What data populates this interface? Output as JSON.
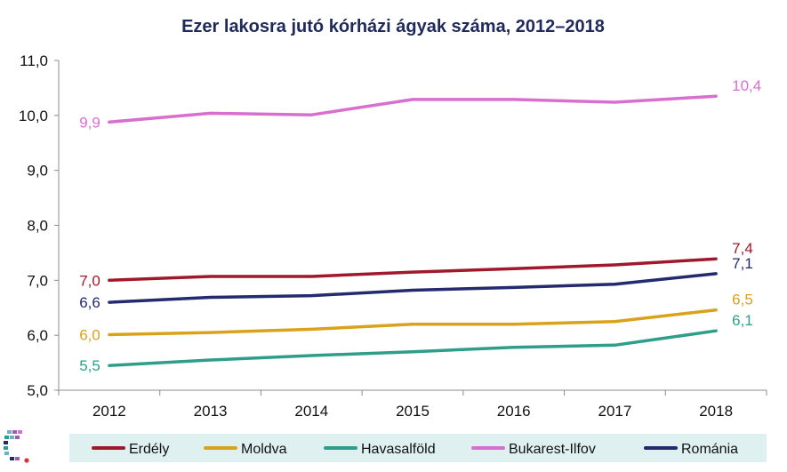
{
  "chart_data": {
    "type": "line",
    "title": "Ezer lakosra jutó kórházi ágyak száma, 2012–2018",
    "xlabel": "",
    "ylabel": "",
    "categories": [
      "2012",
      "2013",
      "2014",
      "2015",
      "2016",
      "2017",
      "2018"
    ],
    "ylim": [
      5.0,
      11.0
    ],
    "yticks": [
      "5,0",
      "6,0",
      "7,0",
      "8,0",
      "9,0",
      "10,0",
      "11,0"
    ],
    "grid": false,
    "legend_position": "bottom",
    "series": [
      {
        "name": "Erdély",
        "color": "#a0182b",
        "values": [
          7.0,
          7.07,
          7.07,
          7.15,
          7.21,
          7.28,
          7.39
        ],
        "labels": [
          "7,0",
          "7,4"
        ]
      },
      {
        "name": "Moldva",
        "color": "#d9a21b",
        "values": [
          6.01,
          6.05,
          6.11,
          6.2,
          6.2,
          6.25,
          6.46
        ],
        "labels": [
          "6,0",
          "6,5"
        ]
      },
      {
        "name": "Havasalföld",
        "color": "#2e9e8a",
        "values": [
          5.45,
          5.55,
          5.63,
          5.7,
          5.78,
          5.82,
          6.08
        ],
        "labels": [
          "5,5",
          "6,1"
        ]
      },
      {
        "name": "Bukarest-Ilfov",
        "color": "#d86fcf",
        "values": [
          9.88,
          10.04,
          10.01,
          10.29,
          10.29,
          10.24,
          10.35
        ],
        "labels": [
          "9,9",
          "10,4"
        ]
      },
      {
        "name": "Románia",
        "color": "#232a6e",
        "values": [
          6.6,
          6.69,
          6.72,
          6.82,
          6.87,
          6.93,
          7.12
        ],
        "labels": [
          "6,6",
          "7,1"
        ]
      }
    ]
  }
}
